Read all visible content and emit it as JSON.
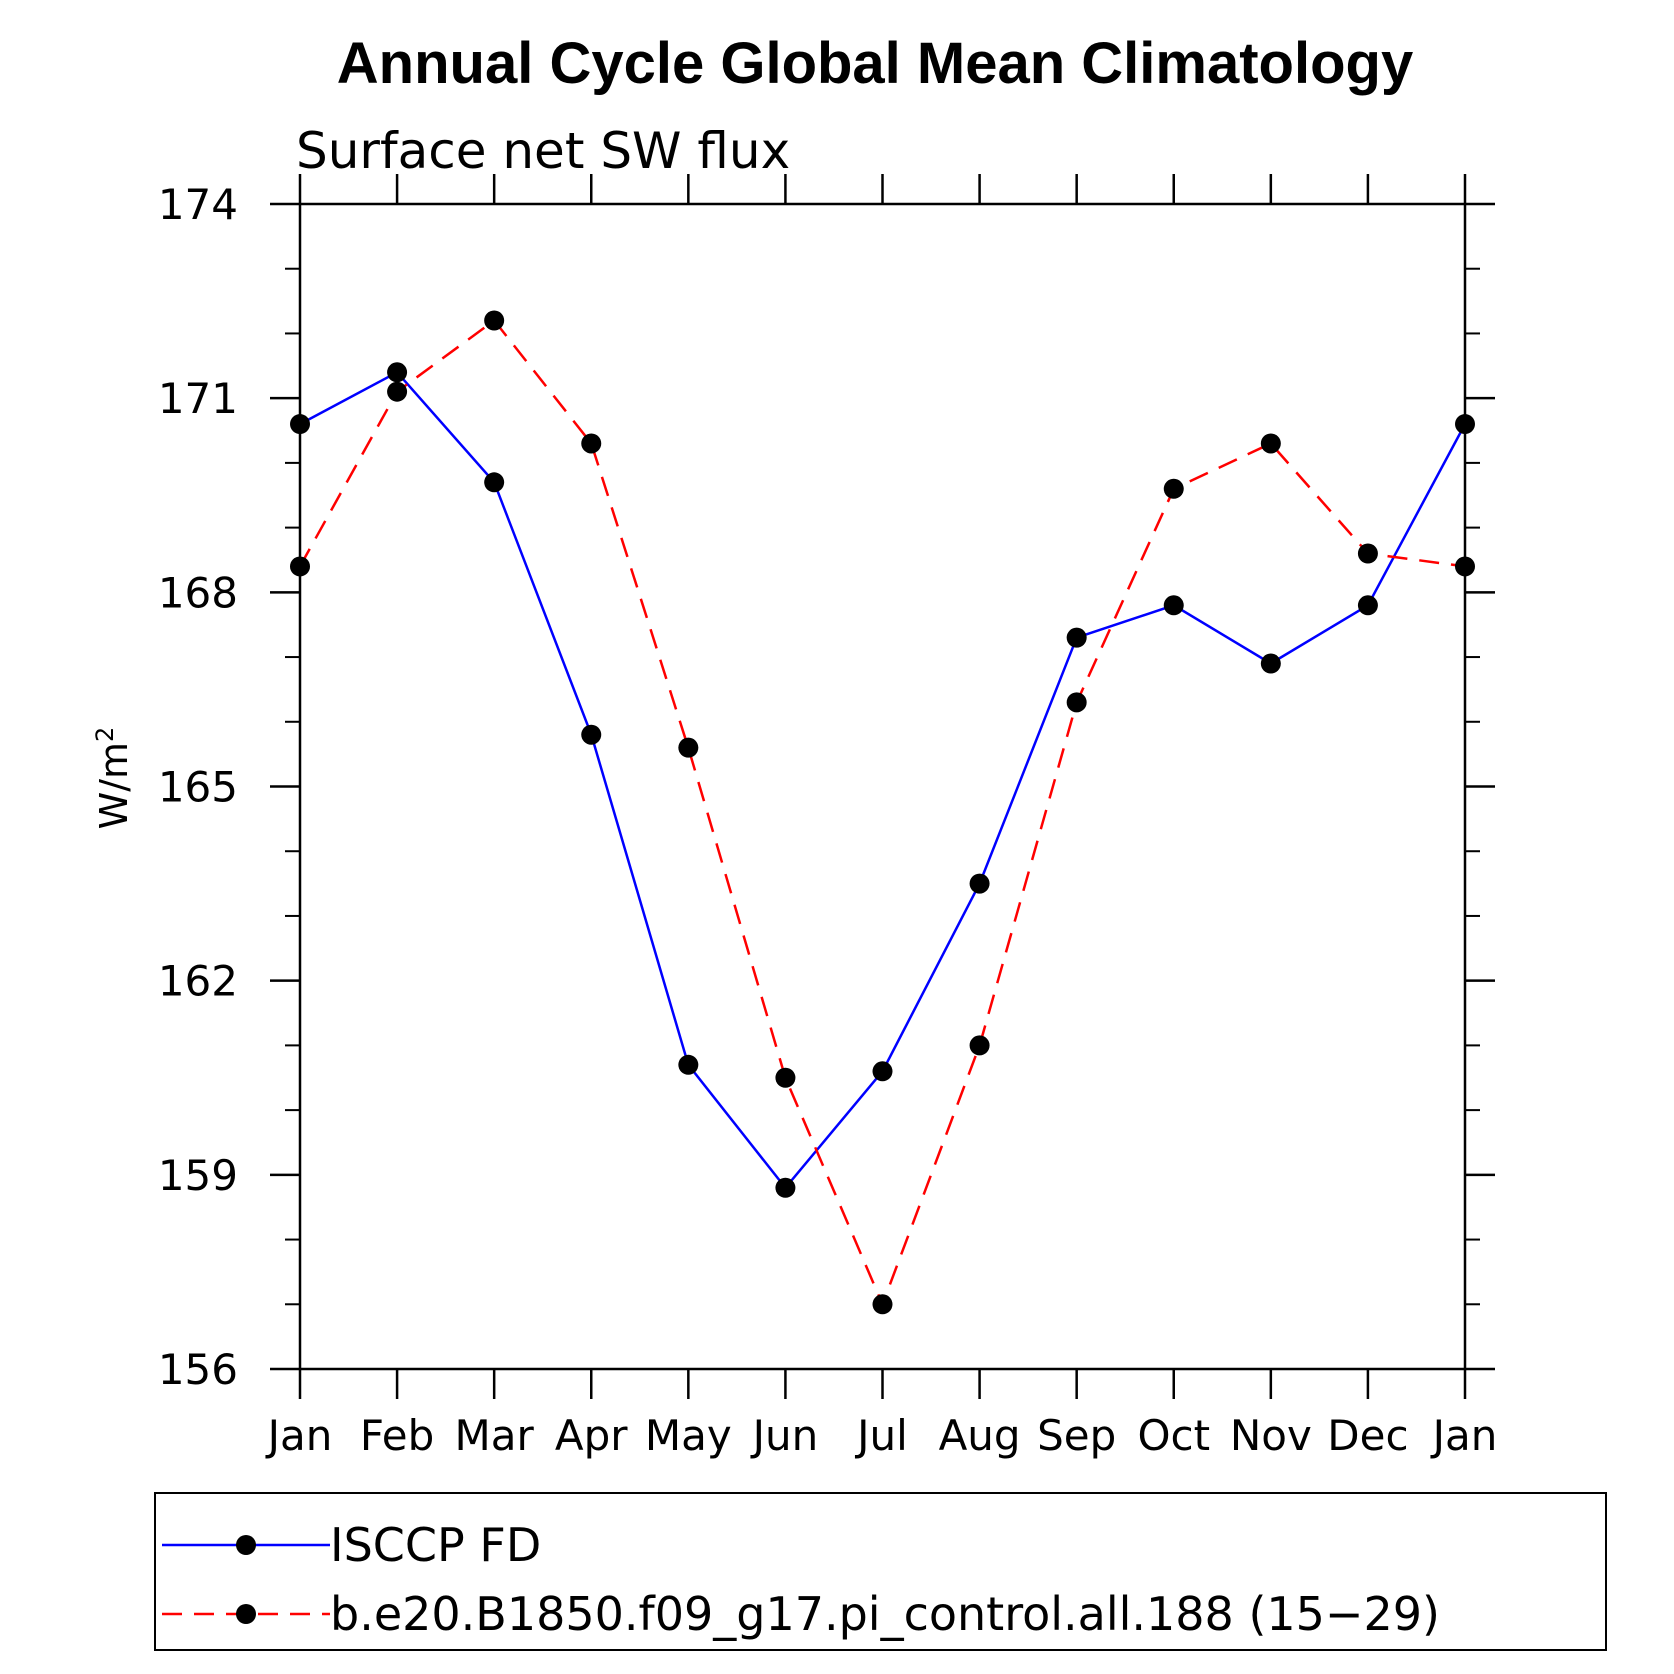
{
  "chart_data": {
    "type": "line",
    "title": "Annual Cycle Global Mean Climatology",
    "subtitle": "Surface net SW flux",
    "ylabel": "W/m",
    "ylabel_superscript": "2",
    "categories": [
      "Jan",
      "Feb",
      "Mar",
      "Apr",
      "May",
      "Jun",
      "Jul",
      "Aug",
      "Sep",
      "Oct",
      "Nov",
      "Dec",
      "Jan"
    ],
    "ylim": [
      156,
      174
    ],
    "yticks": [
      "156",
      "159",
      "162",
      "165",
      "168",
      "171",
      "174"
    ],
    "grid": false,
    "legend_position": "bottom",
    "series": [
      {
        "name": "ISCCP FD",
        "color": "#0000ff",
        "style": "solid",
        "values": [
          170.6,
          171.4,
          169.7,
          165.8,
          160.7,
          158.8,
          160.6,
          163.5,
          167.3,
          167.8,
          166.9,
          167.8,
          170.6
        ]
      },
      {
        "name": "b.e20.B1850.f09_g17.pi_control.all.188 (15−29)",
        "color": "#ff0000",
        "style": "dashed",
        "values": [
          168.4,
          171.1,
          172.2,
          170.3,
          165.6,
          160.5,
          157.0,
          161.0,
          166.3,
          169.6,
          170.3,
          168.6,
          168.4
        ]
      }
    ]
  }
}
